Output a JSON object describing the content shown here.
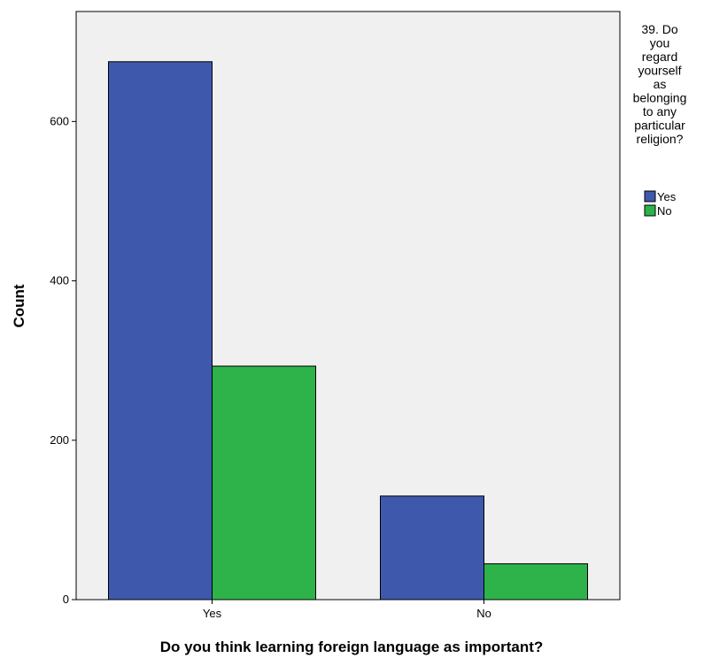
{
  "chart_data": {
    "type": "bar",
    "title": "",
    "xlabel": "Do you think learning foreign language as important?",
    "ylabel": "Count",
    "categories": [
      "Yes",
      "No"
    ],
    "series": [
      {
        "name": "Yes",
        "color": "#3e58ac",
        "values": [
          675,
          130
        ]
      },
      {
        "name": "No",
        "color": "#2db34a",
        "values": [
          293,
          45
        ]
      }
    ],
    "ylim": [
      0,
      738
    ],
    "yticks": [
      0,
      200,
      400,
      600
    ],
    "grid": false,
    "legend": {
      "title_lines": [
        "39. Do",
        "you",
        "regard",
        "yourself",
        "as",
        "belonging",
        "to any",
        "particular",
        "religion?"
      ],
      "placement": "right"
    },
    "plot_background": "#f0f0f0"
  }
}
